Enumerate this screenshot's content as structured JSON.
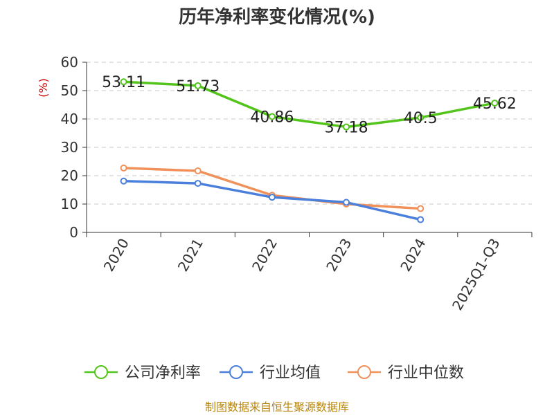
{
  "chart_data": {
    "type": "line",
    "title": "历年净利率变化情况(%)",
    "ylabel": "(%)",
    "categories": [
      "2020",
      "2021",
      "2022",
      "2023",
      "2024",
      "2025Q1-Q3"
    ],
    "ylim": [
      0,
      60
    ],
    "yticks": [
      0,
      10,
      20,
      30,
      40,
      50,
      60
    ],
    "grid": true,
    "legend_position": "bottom",
    "series": [
      {
        "name": "公司净利率",
        "color": "#52c41a",
        "values": [
          53.11,
          51.73,
          40.86,
          37.18,
          40.5,
          45.62
        ],
        "labels": [
          "53.11",
          "51.73",
          "40.86",
          "37.18",
          "40.5",
          "45.62"
        ]
      },
      {
        "name": "行业均值",
        "color": "#4a7fdb",
        "values": [
          18.1,
          17.3,
          12.4,
          10.6,
          4.5,
          null
        ]
      },
      {
        "name": "行业中位数",
        "color": "#f0905a",
        "values": [
          22.7,
          21.7,
          13.1,
          10.0,
          8.4,
          null
        ]
      }
    ]
  },
  "source": "制图数据来自恒生聚源数据库"
}
